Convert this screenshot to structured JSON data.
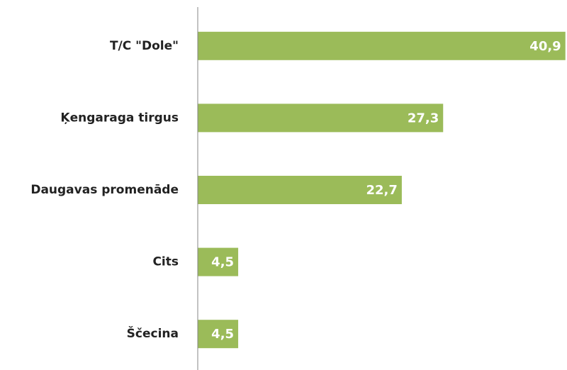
{
  "chart_data": {
    "type": "barh",
    "categories": [
      "T/C \"Dole\"",
      "Ķengaraga tirgus",
      "Daugavas promenāde",
      "Cits",
      "Ščecina"
    ],
    "values": [
      40.9,
      27.3,
      22.7,
      4.5,
      4.5
    ],
    "value_labels": [
      "40,9",
      "27,3",
      "22,7",
      "4,5",
      "4,5"
    ],
    "color": "#9bbb59",
    "xlim": [
      0,
      41
    ]
  }
}
